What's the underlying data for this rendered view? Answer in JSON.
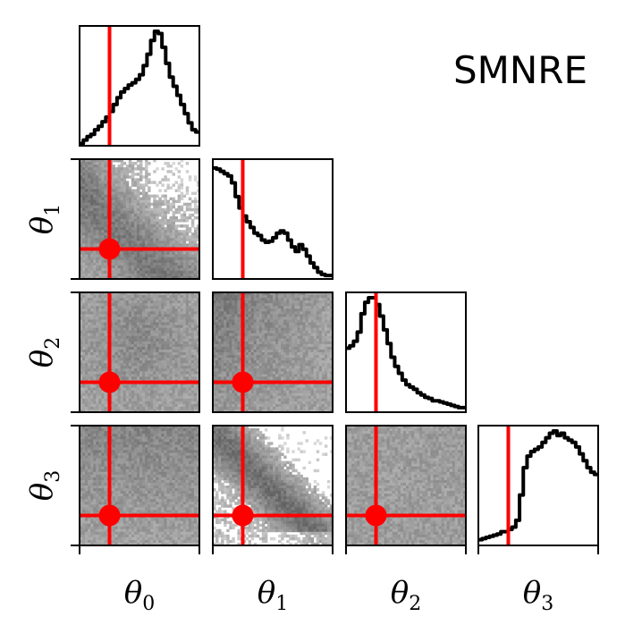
{
  "title": "SMNRE",
  "colors": {
    "truth": "#ff0000",
    "hist_line": "#000000",
    "density_dark": "#5a5a5a",
    "density_light": "#d8d8d8",
    "frame": "#000000"
  },
  "chart_data": {
    "type": "corner",
    "title": "SMNRE",
    "parameters": [
      "θ0",
      "θ1",
      "θ2",
      "θ3"
    ],
    "axis_labels": [
      {
        "symbol": "θ",
        "sub": "0"
      },
      {
        "symbol": "θ",
        "sub": "1"
      },
      {
        "symbol": "θ",
        "sub": "2"
      },
      {
        "symbol": "θ",
        "sub": "3"
      }
    ],
    "range": [
      0,
      1
    ],
    "truth": [
      0.25,
      0.25,
      0.25,
      0.25
    ],
    "truth_marker_2d": "filled-circle",
    "marginals": [
      {
        "param": "θ0",
        "density": [
          0.02,
          0.05,
          0.08,
          0.1,
          0.14,
          0.17,
          0.21,
          0.25,
          0.3,
          0.36,
          0.42,
          0.47,
          0.5,
          0.53,
          0.55,
          0.58,
          0.62,
          0.7,
          0.8,
          0.92,
          1.0,
          0.98,
          0.86,
          0.72,
          0.6,
          0.52,
          0.44,
          0.36,
          0.28,
          0.2,
          0.14,
          0.12
        ]
      },
      {
        "param": "θ1",
        "density": [
          0.97,
          0.96,
          0.94,
          0.92,
          0.9,
          0.84,
          0.72,
          0.62,
          0.55,
          0.5,
          0.45,
          0.4,
          0.38,
          0.34,
          0.32,
          0.33,
          0.36,
          0.4,
          0.42,
          0.4,
          0.34,
          0.28,
          0.24,
          0.3,
          0.26,
          0.2,
          0.14,
          0.1,
          0.06,
          0.04,
          0.03,
          0.03
        ]
      },
      {
        "param": "θ2",
        "density": [
          0.56,
          0.58,
          0.62,
          0.7,
          0.86,
          0.96,
          1.0,
          1.0,
          0.94,
          0.84,
          0.72,
          0.6,
          0.48,
          0.4,
          0.34,
          0.28,
          0.24,
          0.22,
          0.2,
          0.17,
          0.15,
          0.13,
          0.12,
          0.1,
          0.1,
          0.09,
          0.08,
          0.07,
          0.06,
          0.05,
          0.04,
          0.04
        ]
      },
      {
        "param": "θ3",
        "density": [
          0.05,
          0.06,
          0.07,
          0.08,
          0.09,
          0.1,
          0.12,
          0.12,
          0.14,
          0.16,
          0.22,
          0.44,
          0.68,
          0.78,
          0.82,
          0.84,
          0.86,
          0.9,
          0.94,
          0.98,
          1.0,
          0.96,
          0.98,
          0.94,
          0.92,
          0.9,
          0.86,
          0.8,
          0.74,
          0.68,
          0.64,
          0.62
        ]
      }
    ],
    "pairs": [
      {
        "x": "θ0",
        "y": "θ1",
        "density_shape": "dark diagonal band, sparse near top-right"
      },
      {
        "x": "θ0",
        "y": "θ2",
        "density_shape": "broad, slightly darker center"
      },
      {
        "x": "θ1",
        "y": "θ2",
        "density_shape": "anti-correlated band"
      },
      {
        "x": "θ0",
        "y": "θ3",
        "density_shape": "broad, darker at top"
      },
      {
        "x": "θ1",
        "y": "θ3",
        "density_shape": "strong anti-correlated band, empty top-right"
      },
      {
        "x": "θ2",
        "y": "θ3",
        "density_shape": "broad, uniform"
      }
    ],
    "grid": false,
    "legend": "none"
  }
}
